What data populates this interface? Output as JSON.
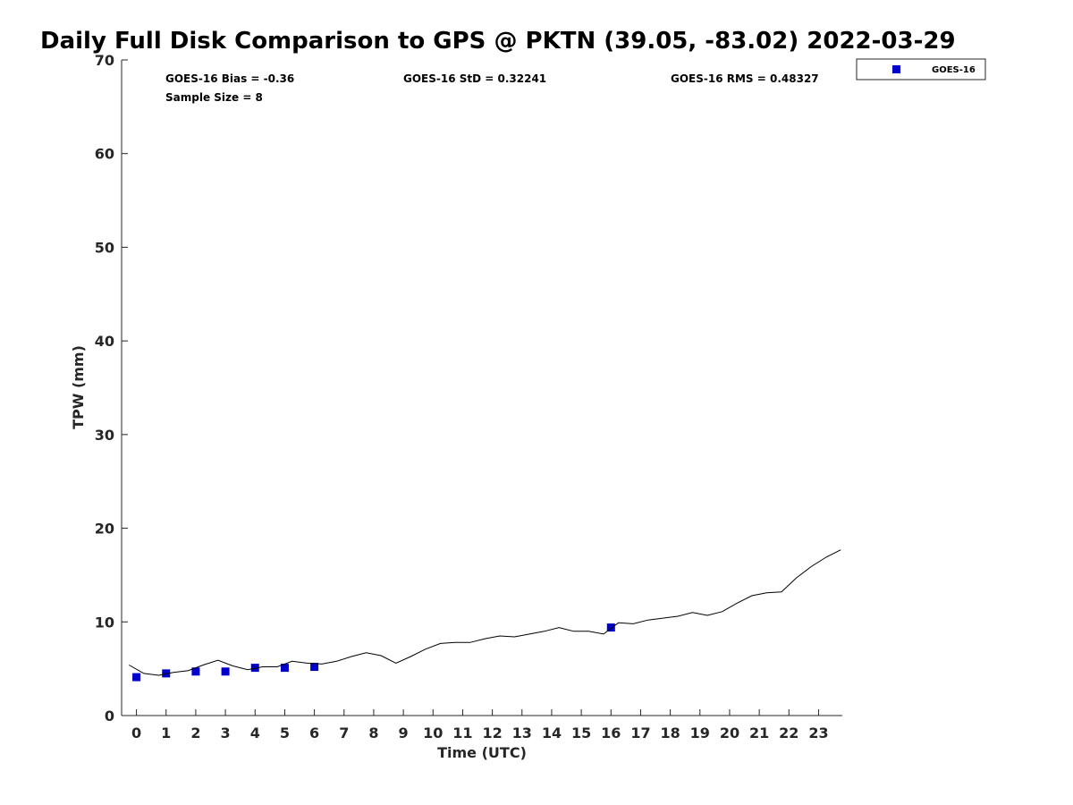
{
  "chart_data": {
    "type": "scatter",
    "title": "Daily Full Disk Comparison to GPS @ PKTN (39.05, -83.02) 2022-03-29",
    "xlabel": "Time (UTC)",
    "ylabel": "TPW (mm)",
    "xlim": [
      -0.5,
      23.8
    ],
    "ylim": [
      0,
      70
    ],
    "x_ticks": [
      "0",
      "1",
      "2",
      "3",
      "4",
      "5",
      "6",
      "7",
      "8",
      "9",
      "10",
      "11",
      "12",
      "13",
      "14",
      "15",
      "16",
      "17",
      "18",
      "19",
      "20",
      "21",
      "22",
      "23"
    ],
    "y_ticks": [
      "0",
      "10",
      "20",
      "30",
      "40",
      "50",
      "60",
      "70"
    ],
    "grid": false,
    "legend_position": "top-right (outside plot)",
    "stats": {
      "bias": "GOES-16 Bias = -0.36",
      "std": "GOES-16 StD = 0.32241",
      "rms": "GOES-16 RMS = 0.48327",
      "sample_size": "Sample Size = 8"
    },
    "series": [
      {
        "name": "GOES-16",
        "kind": "scatter",
        "marker": "square",
        "color": "#0000cc",
        "points": [
          [
            0,
            4.1
          ],
          [
            1,
            4.5
          ],
          [
            2,
            4.7
          ],
          [
            3,
            4.7
          ],
          [
            4,
            5.1
          ],
          [
            5,
            5.1
          ],
          [
            6,
            5.2
          ],
          [
            16,
            9.4
          ]
        ]
      },
      {
        "kind": "line",
        "color": "#000000",
        "points": [
          [
            -0.25,
            5.4
          ],
          [
            0.25,
            4.5
          ],
          [
            0.75,
            4.3
          ],
          [
            1.25,
            4.6
          ],
          [
            1.75,
            4.8
          ],
          [
            2.25,
            5.4
          ],
          [
            2.75,
            5.9
          ],
          [
            3.25,
            5.3
          ],
          [
            3.75,
            4.9
          ],
          [
            4.25,
            5.2
          ],
          [
            4.75,
            5.2
          ],
          [
            5.25,
            5.8
          ],
          [
            5.75,
            5.6
          ],
          [
            6.25,
            5.5
          ],
          [
            6.75,
            5.8
          ],
          [
            7.25,
            6.3
          ],
          [
            7.75,
            6.7
          ],
          [
            8.25,
            6.4
          ],
          [
            8.75,
            5.6
          ],
          [
            9.25,
            6.3
          ],
          [
            9.75,
            7.1
          ],
          [
            10.25,
            7.7
          ],
          [
            10.75,
            7.8
          ],
          [
            11.25,
            7.8
          ],
          [
            11.75,
            8.2
          ],
          [
            12.25,
            8.5
          ],
          [
            12.75,
            8.4
          ],
          [
            13.25,
            8.7
          ],
          [
            13.75,
            9.0
          ],
          [
            14.25,
            9.4
          ],
          [
            14.75,
            9.0
          ],
          [
            15.25,
            9.0
          ],
          [
            15.75,
            8.7
          ],
          [
            16.25,
            9.9
          ],
          [
            16.75,
            9.8
          ],
          [
            17.25,
            10.2
          ],
          [
            17.75,
            10.4
          ],
          [
            18.25,
            10.6
          ],
          [
            18.75,
            11.0
          ],
          [
            19.25,
            10.7
          ],
          [
            19.75,
            11.1
          ],
          [
            20.25,
            12.0
          ],
          [
            20.75,
            12.8
          ],
          [
            21.25,
            13.1
          ],
          [
            21.75,
            13.2
          ],
          [
            22.25,
            14.7
          ],
          [
            22.75,
            15.9
          ],
          [
            23.25,
            16.9
          ],
          [
            23.75,
            17.7
          ]
        ]
      }
    ],
    "legend": [
      "GOES-16"
    ]
  }
}
